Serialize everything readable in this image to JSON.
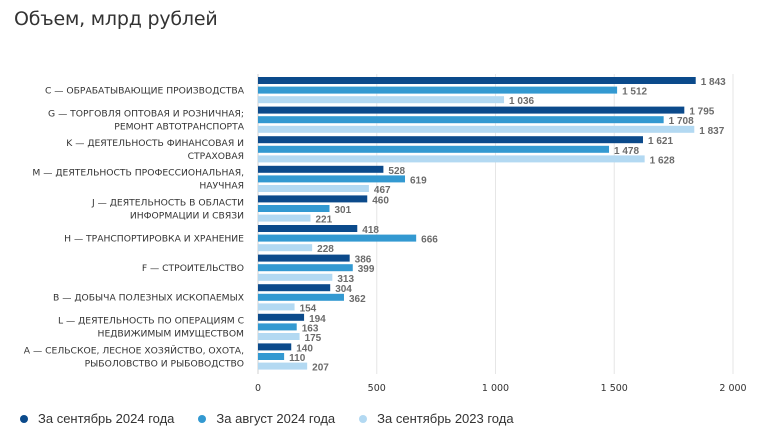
{
  "chart_data": {
    "type": "bar",
    "orientation": "horizontal",
    "title": "Объем, млрд рублей",
    "xlabel": "",
    "ylabel": "",
    "xlim": [
      0,
      2000
    ],
    "xticks": [
      0,
      500,
      1000,
      1500,
      2000
    ],
    "xtick_labels": [
      "0",
      "500",
      "1 000",
      "1 500",
      "2 000"
    ],
    "grid": true,
    "legend_position": "bottom-left",
    "categories": [
      [
        "C — ОБРАБАТЫВАЮЩИЕ ПРОИЗВОДСТВА"
      ],
      [
        "G — ТОРГОВЛЯ ОПТОВАЯ И РОЗНИЧНАЯ;",
        "РЕМОНТ АВТОТРАНСПОРТА"
      ],
      [
        "K — ДЕЯТЕЛЬНОСТЬ ФИНАНСОВАЯ И",
        "СТРАХОВАЯ"
      ],
      [
        "M — ДЕЯТЕЛЬНОСТЬ ПРОФЕССИОНАЛЬНАЯ,",
        "НАУЧНАЯ"
      ],
      [
        "J — ДЕЯТЕЛЬНОСТЬ В ОБЛАСТИ",
        "ИНФОРМАЦИИ И СВЯЗИ"
      ],
      [
        "H — ТРАНСПОРТИРОВКА И ХРАНЕНИЕ"
      ],
      [
        "F — СТРОИТЕЛЬСТВО"
      ],
      [
        "B — ДОБЫЧА ПОЛЕЗНЫХ ИСКОПАЕМЫХ"
      ],
      [
        "L — ДЕЯТЕЛЬНОСТЬ ПО ОПЕРАЦИЯМ С",
        "НЕДВИЖИМЫМ ИМУЩЕСТВОМ"
      ],
      [
        "A — СЕЛЬСКОЕ, ЛЕСНОЕ ХОЗЯЙСТВО, ОХОТА,",
        "РЫБОЛОВСТВО И РЫБОВОДСТВО"
      ]
    ],
    "series": [
      {
        "name": "За сентябрь 2024 года",
        "color": "#0b4a8b",
        "values": [
          1843,
          1795,
          1621,
          528,
          460,
          418,
          386,
          304,
          194,
          140
        ],
        "labels": [
          "1 843",
          "1 795",
          "1 621",
          "528",
          "460",
          "418",
          "386",
          "304",
          "194",
          "140"
        ]
      },
      {
        "name": "За август 2024 года",
        "color": "#3399d1",
        "values": [
          1512,
          1708,
          1478,
          619,
          301,
          666,
          399,
          362,
          163,
          110
        ],
        "labels": [
          "1 512",
          "1 708",
          "1 478",
          "619",
          "301",
          "666",
          "399",
          "362",
          "163",
          "110"
        ]
      },
      {
        "name": "За сентябрь 2023 года",
        "color": "#b3d9f2",
        "values": [
          1036,
          1837,
          1628,
          467,
          221,
          228,
          313,
          154,
          175,
          207
        ],
        "labels": [
          "1 036",
          "1 837",
          "1 628",
          "467",
          "221",
          "228",
          "313",
          "154",
          "175",
          "207"
        ]
      }
    ]
  }
}
